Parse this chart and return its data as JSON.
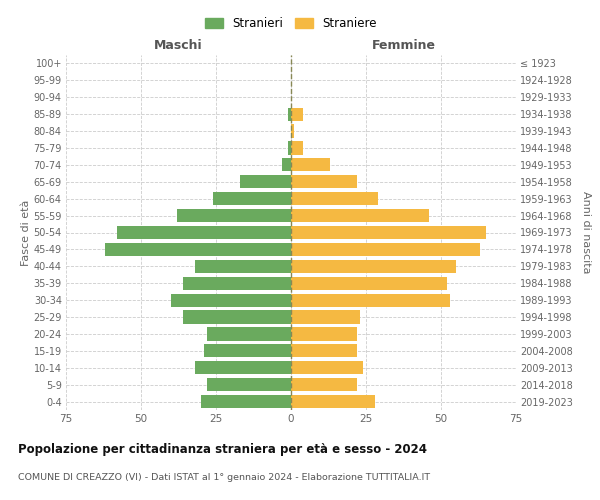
{
  "age_groups": [
    "0-4",
    "5-9",
    "10-14",
    "15-19",
    "20-24",
    "25-29",
    "30-34",
    "35-39",
    "40-44",
    "45-49",
    "50-54",
    "55-59",
    "60-64",
    "65-69",
    "70-74",
    "75-79",
    "80-84",
    "85-89",
    "90-94",
    "95-99",
    "100+"
  ],
  "birth_years": [
    "2019-2023",
    "2014-2018",
    "2009-2013",
    "2004-2008",
    "1999-2003",
    "1994-1998",
    "1989-1993",
    "1984-1988",
    "1979-1983",
    "1974-1978",
    "1969-1973",
    "1964-1968",
    "1959-1963",
    "1954-1958",
    "1949-1953",
    "1944-1948",
    "1939-1943",
    "1934-1938",
    "1929-1933",
    "1924-1928",
    "≤ 1923"
  ],
  "maschi": [
    30,
    28,
    32,
    29,
    28,
    36,
    40,
    36,
    32,
    62,
    58,
    38,
    26,
    17,
    3,
    1,
    0,
    1,
    0,
    0,
    0
  ],
  "femmine": [
    28,
    22,
    24,
    22,
    22,
    23,
    53,
    52,
    55,
    63,
    65,
    46,
    29,
    22,
    13,
    4,
    1,
    4,
    0,
    0,
    0
  ],
  "male_color": "#6aaa5e",
  "female_color": "#f5b942",
  "grid_color": "#cccccc",
  "center_line_color": "#888855",
  "title": "Popolazione per cittadinanza straniera per età e sesso - 2024",
  "subtitle": "COMUNE DI CREAZZO (VI) - Dati ISTAT al 1° gennaio 2024 - Elaborazione TUTTITALIA.IT",
  "xlabel_left": "Maschi",
  "xlabel_right": "Femmine",
  "ylabel_left": "Fasce di età",
  "ylabel_right": "Anni di nascita",
  "legend_male": "Stranieri",
  "legend_female": "Straniere",
  "xlim": 75,
  "background_color": "#ffffff"
}
